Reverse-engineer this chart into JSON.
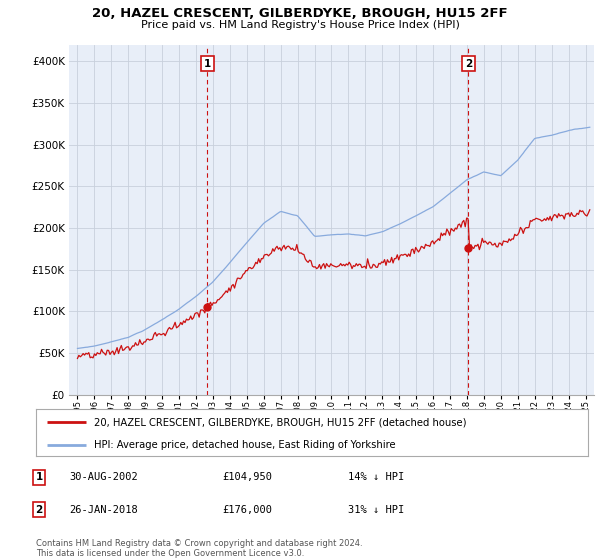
{
  "title": "20, HAZEL CRESCENT, GILBERDYKE, BROUGH, HU15 2FF",
  "subtitle": "Price paid vs. HM Land Registry's House Price Index (HPI)",
  "ylim": [
    0,
    420000
  ],
  "yticks": [
    0,
    50000,
    100000,
    150000,
    200000,
    250000,
    300000,
    350000,
    400000
  ],
  "ytick_labels": [
    "£0",
    "£50K",
    "£100K",
    "£150K",
    "£200K",
    "£250K",
    "£300K",
    "£350K",
    "£400K"
  ],
  "xlim_start": 1994.5,
  "xlim_end": 2025.5,
  "sale1_date": 2002.667,
  "sale1_price": 104950,
  "sale1_label": "1",
  "sale2_date": 2018.083,
  "sale2_price": 176000,
  "sale2_label": "2",
  "hpi_line_color": "#88aadd",
  "price_line_color": "#cc1111",
  "vline_color": "#cc1111",
  "plot_bg_color": "#e8eef8",
  "legend_entry1": "20, HAZEL CRESCENT, GILBERDYKE, BROUGH, HU15 2FF (detached house)",
  "legend_entry2": "HPI: Average price, detached house, East Riding of Yorkshire",
  "table_row1": [
    "1",
    "30-AUG-2002",
    "£104,950",
    "14% ↓ HPI"
  ],
  "table_row2": [
    "2",
    "26-JAN-2018",
    "£176,000",
    "31% ↓ HPI"
  ],
  "footnote": "Contains HM Land Registry data © Crown copyright and database right 2024.\nThis data is licensed under the Open Government Licence v3.0.",
  "bg_color": "#ffffff",
  "grid_color": "#c8d0dc"
}
